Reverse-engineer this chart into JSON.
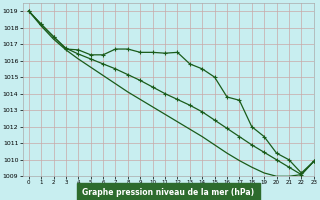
{
  "title": "Graphe pression niveau de la mer (hPa)",
  "bg_color": "#c8eef0",
  "grid_color": "#c8a8a8",
  "line_color": "#1a5c1a",
  "xlim": [
    -0.5,
    23
  ],
  "ylim": [
    1009,
    1019.5
  ],
  "xticks": [
    0,
    1,
    2,
    3,
    4,
    5,
    6,
    7,
    8,
    9,
    10,
    11,
    12,
    13,
    14,
    15,
    16,
    17,
    18,
    19,
    20,
    21,
    22,
    23
  ],
  "yticks": [
    1009,
    1010,
    1011,
    1012,
    1013,
    1014,
    1015,
    1016,
    1017,
    1018,
    1019
  ],
  "line1_y": [
    1019.0,
    1018.2,
    1017.45,
    1016.7,
    1016.65,
    1016.35,
    1016.35,
    1016.7,
    1016.7,
    1016.5,
    1016.5,
    1016.45,
    1016.5,
    1015.8,
    1015.5,
    1015.0,
    1013.8,
    1013.6,
    1012.0,
    1011.4,
    1010.4,
    1010.0,
    1009.2,
    1009.9
  ],
  "line2_y": [
    1019.0,
    1018.2,
    1017.45,
    1016.75,
    1016.4,
    1016.1,
    1015.8,
    1015.5,
    1015.15,
    1014.8,
    1014.4,
    1014.0,
    1013.65,
    1013.3,
    1012.9,
    1012.4,
    1011.9,
    1011.4,
    1010.9,
    1010.45,
    1010.0,
    1009.55,
    1009.1,
    1009.9
  ],
  "line3_y": [
    1019.0,
    1018.1,
    1017.3,
    1016.65,
    1016.1,
    1015.6,
    1015.1,
    1014.6,
    1014.1,
    1013.65,
    1013.2,
    1012.75,
    1012.3,
    1011.85,
    1011.4,
    1010.9,
    1010.4,
    1009.95,
    1009.55,
    1009.2,
    1009.0,
    1009.0,
    1009.1,
    1009.9
  ],
  "ylabel_fontsize": 4.5,
  "xlabel_fontsize": 4.0,
  "title_fontsize": 5.5
}
